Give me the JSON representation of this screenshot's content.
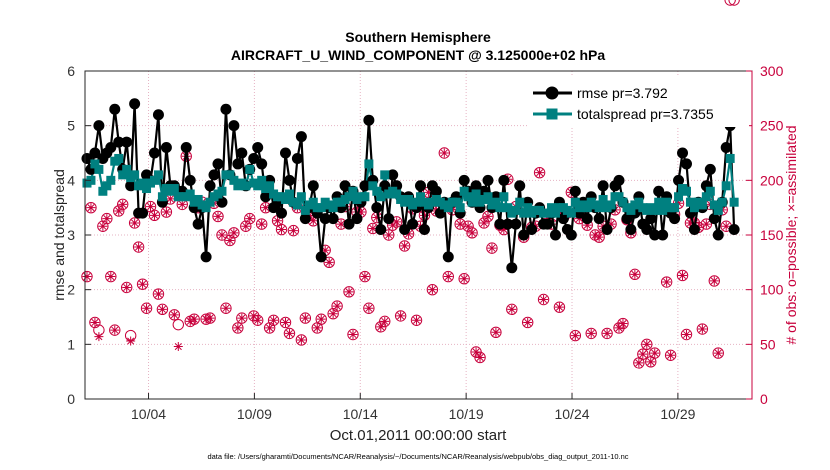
{
  "chart_data": {
    "type": "line",
    "title": "Southern Hemisphere",
    "subtitle": "AIRCRAFT_U_WIND_COMPONENT @ 3.125000e+02 hPa",
    "xlabel": "Oct.01,2011 00:00:00 start",
    "ylabel": "rmse and totalspread",
    "ylabel_right": "# of obs: o=possible; ×=assimilated",
    "footer": "data file: /Users/gharamti/Documents/NCAR/Reanalysis/~/Documents/NCAR/Reanalysis/webpub/obs_diag_output_2011-10.nc",
    "xlim": [
      0,
      31.5
    ],
    "ylim": [
      0,
      6
    ],
    "ylim_right": [
      0,
      300
    ],
    "x_ticks": [
      3,
      8,
      13,
      18,
      23,
      28
    ],
    "x_tick_labels": [
      "10/04",
      "10/09",
      "10/14",
      "10/19",
      "10/24",
      "10/29"
    ],
    "y_ticks": [
      0,
      1,
      2,
      3,
      4,
      5,
      6
    ],
    "y_tick_labels": [
      "0",
      "1",
      "2",
      "3",
      "4",
      "5",
      "6"
    ],
    "y_ticks_right": [
      0,
      50,
      100,
      150,
      200,
      250,
      300
    ],
    "y_tick_labels_right": [
      "0",
      "50",
      "100",
      "150",
      "200",
      "250",
      "300"
    ],
    "colors": {
      "rmse": "#000000",
      "totalspread": "#008080",
      "obs": "#c8003c",
      "grid": "#e6b3c3"
    },
    "series": [
      {
        "name": "rmse pr=3.792",
        "axis": "left",
        "values": [
          4.4,
          4.2,
          4.5,
          5.0,
          4.4,
          4.5,
          4.6,
          5.3,
          4.7,
          4.2,
          4.7,
          3.9,
          5.4,
          3.4,
          3.4,
          4.1,
          4.0,
          4.5,
          5.2,
          3.6,
          4.6,
          3.9,
          3.9,
          3.8,
          3.8,
          4.6,
          4.0,
          3.5,
          3.2,
          3.5,
          2.6,
          3.9,
          4.1,
          4.3,
          3.6,
          5.3,
          4.1,
          5.0,
          4.3,
          4.5,
          3.9,
          4.2,
          4.4,
          4.6,
          4.3,
          3.7,
          4.0,
          3.5,
          3.6,
          3.4,
          4.5,
          4.0,
          3.6,
          4.4,
          4.8,
          3.3,
          3.5,
          3.9,
          3.4,
          2.6,
          3.3,
          3.5,
          3.3,
          3.7,
          3.5,
          3.9,
          3.2,
          3.8,
          3.3,
          3.6,
          3.9,
          5.1,
          4.0,
          3.5,
          3.1,
          3.9,
          3.3,
          4.1,
          3.9,
          3.7,
          3.1,
          3.7,
          3.2,
          3.5,
          3.9,
          3.1,
          3.5,
          3.9,
          3.8,
          3.4,
          3.6,
          2.6,
          3.6,
          3.7,
          3.4,
          4.0,
          3.8,
          3.6,
          3.9,
          3.5,
          3.8,
          4.0,
          3.5,
          3.7,
          3.2,
          4.0,
          3.2,
          2.4,
          3.2,
          3.9,
          3.0,
          3.6,
          3.1,
          3.4,
          3.5,
          3.2,
          3.2,
          3.4,
          3.0,
          3.6,
          3.3,
          3.1,
          3.0,
          3.8,
          3.4,
          3.6,
          3.3,
          3.7,
          3.5,
          3.3,
          3.9,
          3.1,
          3.5,
          3.9,
          4.0,
          3.6,
          3.3,
          3.1,
          3.4,
          3.7,
          3.2,
          3.1,
          3.3,
          3.0,
          3.8,
          3.0,
          3.7,
          3.4,
          3.3,
          4.0,
          4.5,
          4.3,
          3.4,
          3.1,
          3.6,
          3.5,
          3.9,
          4.2,
          3.3,
          3.0,
          3.6,
          4.6,
          5.0,
          3.1
        ]
      },
      {
        "name": "totalspread pr=3.7355",
        "axis": "left",
        "values": [
          3.95,
          4.0,
          4.3,
          4.2,
          3.8,
          3.9,
          4.0,
          4.35,
          4.4,
          4.1,
          4.2,
          4.05,
          4.1,
          3.9,
          3.95,
          3.85,
          3.95,
          4.0,
          4.1,
          3.7,
          3.85,
          3.8,
          3.85,
          3.7,
          3.7,
          3.7,
          3.75,
          3.6,
          3.65,
          3.55,
          3.5,
          3.6,
          3.7,
          3.75,
          3.8,
          4.1,
          4.1,
          4.0,
          3.9,
          3.95,
          3.9,
          4.2,
          3.95,
          3.9,
          4.0,
          3.85,
          3.9,
          3.75,
          3.7,
          3.7,
          3.65,
          3.75,
          3.6,
          3.55,
          3.7,
          3.45,
          3.55,
          3.6,
          3.5,
          3.5,
          3.6,
          3.55,
          3.5,
          3.6,
          3.6,
          3.65,
          3.7,
          3.8,
          3.65,
          3.7,
          3.7,
          4.3,
          3.9,
          3.8,
          3.7,
          4.1,
          3.75,
          3.8,
          3.75,
          3.65,
          3.6,
          3.65,
          3.55,
          3.6,
          3.7,
          3.6,
          3.55,
          3.6,
          3.65,
          3.6,
          3.55,
          3.5,
          3.6,
          3.6,
          3.5,
          3.8,
          3.7,
          3.6,
          3.75,
          3.6,
          3.65,
          3.7,
          3.55,
          3.6,
          3.5,
          3.7,
          3.5,
          3.4,
          3.45,
          3.6,
          3.4,
          3.5,
          3.4,
          3.45,
          3.45,
          3.4,
          3.4,
          3.5,
          3.4,
          3.5,
          3.5,
          3.45,
          3.4,
          3.6,
          3.5,
          3.55,
          3.5,
          3.6,
          3.55,
          3.5,
          3.65,
          3.5,
          3.55,
          3.7,
          3.7,
          3.6,
          3.5,
          3.45,
          3.55,
          3.6,
          3.5,
          3.45,
          3.5,
          3.45,
          3.6,
          3.45,
          3.6,
          3.5,
          3.5,
          3.7,
          3.85,
          3.8,
          3.6,
          3.5,
          3.6,
          3.55,
          3.7,
          3.8,
          3.55,
          3.45,
          3.6,
          3.9,
          4.4,
          3.6
        ]
      },
      {
        "name": "possible",
        "axis": "right",
        "values": [
          112,
          175,
          70,
          63,
          158,
          165,
          112,
          63,
          172,
          178,
          102,
          58,
          161,
          139,
          105,
          83,
          176,
          168,
          96,
          82,
          171,
          183,
          77,
          68,
          178,
          222,
          71,
          73,
          175,
          180,
          73,
          74,
          179,
          167,
          150,
          83,
          145,
          152,
          65,
          74,
          158,
          165,
          76,
          72,
          160,
          175,
          65,
          72,
          163,
          155,
          70,
          60,
          154,
          175,
          54,
          74,
          168,
          163,
          65,
          73,
          136,
          125,
          78,
          85,
          160,
          176,
          98,
          59,
          171,
          171,
          112,
          83,
          156,
          166,
          66,
          71,
          150,
          159,
          162,
          76,
          140,
          151,
          174,
          72,
          158,
          168,
          189,
          100,
          172,
          174,
          225,
          112,
          173,
          178,
          160,
          110,
          158,
          152,
          43,
          38,
          161,
          167,
          138,
          61,
          159,
          155,
          201,
          82,
          176,
          174,
          148,
          70,
          157,
          158,
          207,
          91,
          165,
          160,
          172,
          84,
          166,
          170,
          189,
          58,
          165,
          168,
          159,
          60,
          150,
          148,
          158,
          60,
          160,
          173,
          65,
          69,
          164,
          152,
          114,
          33,
          41,
          50,
          34,
          42,
          176,
          177,
          107,
          40,
          169,
          179,
          113,
          59,
          161,
          161,
          157,
          64,
          160,
          178,
          108,
          42,
          173,
          158
        ]
      },
      {
        "name": "assimilated",
        "axis": "right",
        "values": [
          112,
          175,
          70,
          57,
          158,
          165,
          112,
          63,
          172,
          178,
          102,
          53,
          161,
          139,
          105,
          83,
          176,
          168,
          96,
          82,
          171,
          183,
          77,
          48,
          178,
          222,
          71,
          73,
          175,
          180,
          73,
          74,
          179,
          167,
          150,
          83,
          145,
          152,
          65,
          74,
          158,
          165,
          76,
          72,
          160,
          175,
          65,
          72,
          163,
          155,
          70,
          60,
          154,
          175,
          54,
          74,
          168,
          163,
          65,
          73,
          136,
          125,
          78,
          85,
          160,
          176,
          98,
          59,
          171,
          171,
          112,
          83,
          156,
          166,
          66,
          71,
          150,
          159,
          162,
          76,
          140,
          151,
          174,
          72,
          158,
          168,
          189,
          100,
          172,
          174,
          225,
          112,
          173,
          178,
          160,
          110,
          158,
          152,
          43,
          38,
          161,
          167,
          138,
          61,
          159,
          155,
          201,
          82,
          176,
          174,
          148,
          70,
          157,
          158,
          207,
          91,
          165,
          160,
          172,
          84,
          166,
          170,
          189,
          58,
          165,
          168,
          159,
          60,
          150,
          148,
          158,
          60,
          160,
          173,
          65,
          69,
          164,
          152,
          114,
          33,
          41,
          50,
          34,
          42,
          176,
          177,
          107,
          40,
          169,
          179,
          113,
          59,
          161,
          161,
          157,
          64,
          160,
          178,
          108,
          42,
          173,
          158
        ]
      }
    ]
  }
}
